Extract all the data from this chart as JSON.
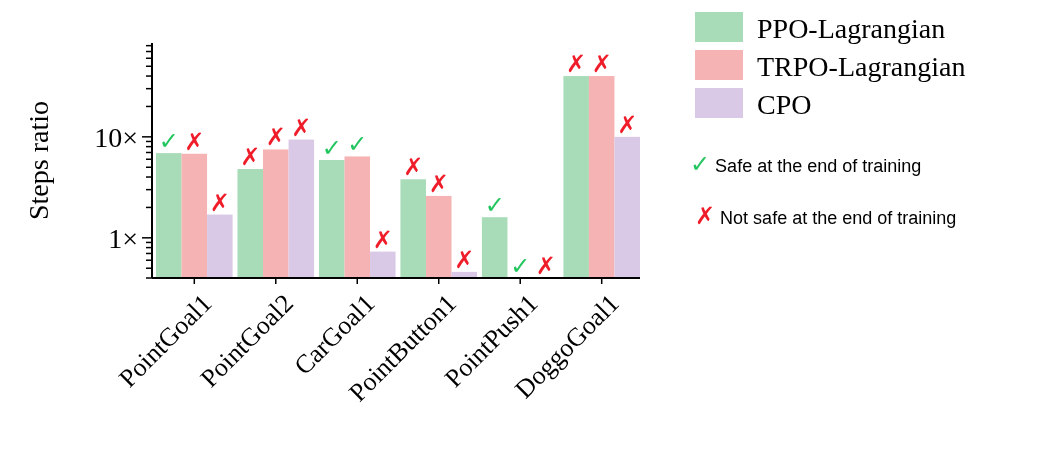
{
  "chart_data": {
    "type": "bar",
    "ylabel": "Steps ratio",
    "log": true,
    "legend": "right",
    "ylim": [
      0.4,
      85
    ],
    "yticks": [
      {
        "value": 0.4,
        "label": null
      },
      {
        "value": 0.5,
        "label": null
      },
      {
        "value": 0.6,
        "label": null
      },
      {
        "value": 0.7,
        "label": null
      },
      {
        "value": 0.8,
        "label": null
      },
      {
        "value": 0.9,
        "label": null
      },
      {
        "value": 1,
        "label": "1×"
      },
      {
        "value": 2,
        "label": null
      },
      {
        "value": 3,
        "label": null
      },
      {
        "value": 4,
        "label": null
      },
      {
        "value": 5,
        "label": null
      },
      {
        "value": 6,
        "label": null
      },
      {
        "value": 7,
        "label": null
      },
      {
        "value": 8,
        "label": null
      },
      {
        "value": 9,
        "label": null
      },
      {
        "value": 10,
        "label": "10×"
      },
      {
        "value": 20,
        "label": null
      },
      {
        "value": 30,
        "label": null
      },
      {
        "value": 40,
        "label": null
      },
      {
        "value": 50,
        "label": null
      },
      {
        "value": 60,
        "label": null
      },
      {
        "value": 70,
        "label": null
      },
      {
        "value": 80,
        "label": null
      }
    ],
    "categories": [
      "PointGoal1",
      "PointGoal2",
      "CarGoal1",
      "PointButton1",
      "PointPush1",
      "DoggoGoal1"
    ],
    "series": [
      {
        "name": "PPO-Lagrangian",
        "color": "#a8dcb9",
        "values": [
          6.9,
          4.8,
          5.9,
          3.8,
          1.6,
          40
        ],
        "value_labels": [
          "✓",
          "✗",
          "✓",
          "✗",
          "✓",
          "✗"
        ]
      },
      {
        "name": "TRPO-Lagrangian",
        "color": "#f6b3b3",
        "values": [
          6.8,
          7.5,
          6.4,
          2.6,
          null,
          40
        ],
        "value_labels": [
          "✗",
          "✗",
          "✓",
          "✗",
          "✓",
          "✗"
        ]
      },
      {
        "name": "CPO",
        "color": "#d9c9e6",
        "values": [
          1.7,
          9.4,
          0.73,
          0.46,
          null,
          10
        ],
        "value_labels": [
          "✗",
          "✗",
          "✗",
          "✗",
          "✗",
          "✗"
        ]
      }
    ],
    "annotations": [
      "✓ Safe at the end of training",
      "✗ Not safe at the end of training"
    ]
  }
}
